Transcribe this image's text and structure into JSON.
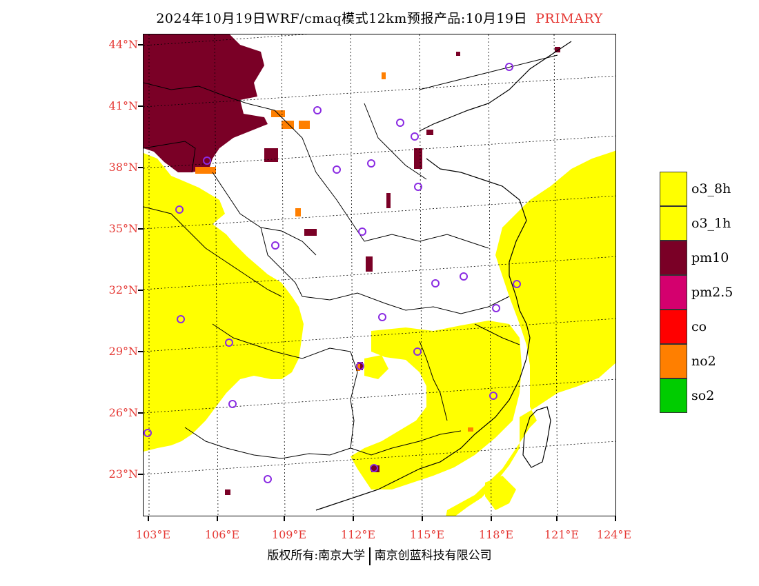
{
  "title": {
    "main": "2024年10月19日WRF/cmaq模式12km预报产品:10月19日",
    "tag": "PRIMARY"
  },
  "lat_labels": [
    "44°N",
    "41°N",
    "38°N",
    "35°N",
    "32°N",
    "29°N",
    "26°N",
    "23°N"
  ],
  "lon_labels": [
    "103°E",
    "106°E",
    "109°E",
    "112°E",
    "115°E",
    "118°E",
    "121°E",
    "124°E"
  ],
  "legend": [
    {
      "label": "o3_8h",
      "color": "#ffff00"
    },
    {
      "label": "o3_1h",
      "color": "#ffff00"
    },
    {
      "label": "pm10",
      "color": "#7a0026"
    },
    {
      "label": "pm2.5",
      "color": "#d4006e"
    },
    {
      "label": "co",
      "color": "#ff0000"
    },
    {
      "label": "no2",
      "color": "#ff7f00"
    },
    {
      "label": "so2",
      "color": "#00cc00"
    }
  ],
  "copyright": {
    "left": "版权所有:南京大学",
    "right": "南京创蓝科技有限公司"
  },
  "colors": {
    "o3": "#ffff00",
    "pm10": "#7a0026",
    "no2": "#ff7f00",
    "label_red": "#e53935",
    "station": "#8a2be2"
  }
}
